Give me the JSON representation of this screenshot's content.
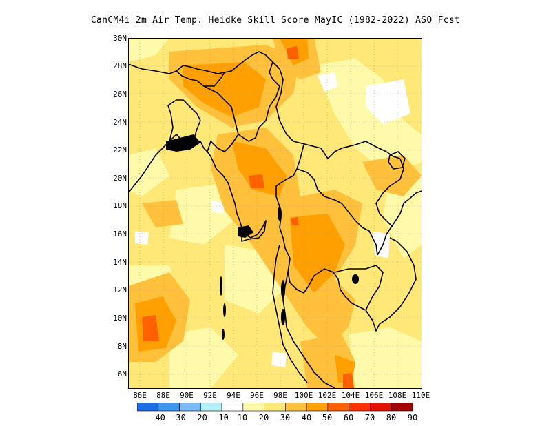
{
  "title": "CanCM4i 2m Air Temp. Heidke Skill Score MayIC (1982-2022) ASO Fcst",
  "lat_labels": [
    "30N",
    "28N",
    "26N",
    "24N",
    "22N",
    "20N",
    "18N",
    "16N",
    "14N",
    "12N",
    "10N",
    "8N",
    "6N"
  ],
  "lon_labels": [
    "86E",
    "88E",
    "90E",
    "92E",
    "94E",
    "96E",
    "98E",
    "100E",
    "102E",
    "104E",
    "106E",
    "108E",
    "110E"
  ],
  "map": {
    "lon_range": [
      85,
      110
    ],
    "lat_range": [
      5,
      30
    ],
    "grid": "dotted, every 2 degrees"
  },
  "legend": {
    "labels": [
      "-40",
      "-30",
      "-20",
      "-10",
      "10",
      "20",
      "30",
      "40",
      "50",
      "60",
      "70",
      "80",
      "90"
    ],
    "colors": [
      "#1e6ee8",
      "#3c96f0",
      "#78b9fa",
      "#b4f0fa",
      "#ffffff",
      "#fffaaa",
      "#ffe878",
      "#ffc03c",
      "#ffa000",
      "#ff6000",
      "#ff3200",
      "#e11400",
      "#a50000"
    ]
  }
}
